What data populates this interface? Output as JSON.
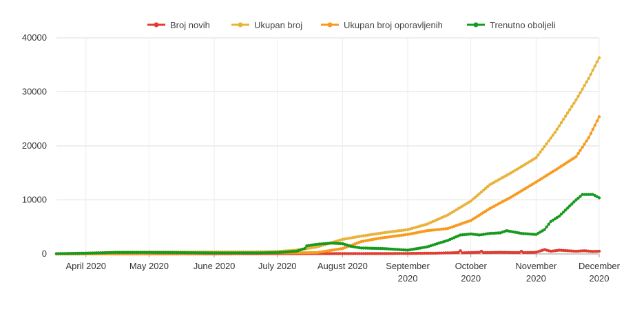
{
  "chart_data": {
    "type": "line",
    "x_ticks": [
      {
        "date": "2020-04-01",
        "line1": "April 2020",
        "line2": ""
      },
      {
        "date": "2020-05-01",
        "line1": "May 2020",
        "line2": ""
      },
      {
        "date": "2020-06-01",
        "line1": "June 2020",
        "line2": ""
      },
      {
        "date": "2020-07-01",
        "line1": "July 2020",
        "line2": ""
      },
      {
        "date": "2020-08-01",
        "line1": "August 2020",
        "line2": ""
      },
      {
        "date": "2020-09-01",
        "line1": "September",
        "line2": "2020"
      },
      {
        "date": "2020-10-01",
        "line1": "October",
        "line2": "2020"
      },
      {
        "date": "2020-11-01",
        "line1": "November",
        "line2": "2020"
      },
      {
        "date": "2020-12-01",
        "line1": "December",
        "line2": "2020"
      }
    ],
    "xlim": [
      "2020-03-18",
      "2020-12-01"
    ],
    "y_ticks": [
      0,
      10000,
      20000,
      30000,
      40000
    ],
    "ylim": [
      0,
      40000
    ],
    "grid": true,
    "legend_position": "top",
    "series": [
      {
        "name": "Broj novih",
        "color": "#e03c31",
        "points": [
          [
            "2020-03-18",
            5
          ],
          [
            "2020-04-01",
            20
          ],
          [
            "2020-05-01",
            10
          ],
          [
            "2020-06-01",
            15
          ],
          [
            "2020-07-01",
            30
          ],
          [
            "2020-07-15",
            50
          ],
          [
            "2020-08-01",
            60
          ],
          [
            "2020-08-15",
            70
          ],
          [
            "2020-09-01",
            90
          ],
          [
            "2020-09-15",
            150
          ],
          [
            "2020-09-25",
            250
          ],
          [
            "2020-09-26",
            600
          ],
          [
            "2020-09-27",
            200
          ],
          [
            "2020-10-05",
            300
          ],
          [
            "2020-10-06",
            500
          ],
          [
            "2020-10-07",
            250
          ],
          [
            "2020-10-15",
            300
          ],
          [
            "2020-10-24",
            250
          ],
          [
            "2020-10-25",
            500
          ],
          [
            "2020-10-26",
            250
          ],
          [
            "2020-11-01",
            300
          ],
          [
            "2020-11-05",
            800
          ],
          [
            "2020-11-08",
            500
          ],
          [
            "2020-11-12",
            700
          ],
          [
            "2020-11-16",
            600
          ],
          [
            "2020-11-20",
            500
          ],
          [
            "2020-11-24",
            600
          ],
          [
            "2020-11-28",
            450
          ],
          [
            "2020-12-01",
            500
          ]
        ]
      },
      {
        "name": "Ukupan broj",
        "color": "#e8b33a",
        "points": [
          [
            "2020-03-18",
            50
          ],
          [
            "2020-04-01",
            150
          ],
          [
            "2020-04-15",
            300
          ],
          [
            "2020-05-01",
            350
          ],
          [
            "2020-06-01",
            350
          ],
          [
            "2020-06-20",
            360
          ],
          [
            "2020-07-01",
            450
          ],
          [
            "2020-07-10",
            700
          ],
          [
            "2020-07-20",
            1300
          ],
          [
            "2020-08-01",
            2700
          ],
          [
            "2020-08-10",
            3300
          ],
          [
            "2020-08-20",
            3900
          ],
          [
            "2020-09-01",
            4500
          ],
          [
            "2020-09-10",
            5500
          ],
          [
            "2020-09-20",
            7200
          ],
          [
            "2020-10-01",
            9800
          ],
          [
            "2020-10-10",
            12800
          ],
          [
            "2020-10-20",
            15000
          ],
          [
            "2020-11-01",
            17800
          ],
          [
            "2020-11-10",
            22500
          ],
          [
            "2020-11-20",
            28500
          ],
          [
            "2020-11-26",
            32500
          ],
          [
            "2020-12-01",
            36300
          ]
        ]
      },
      {
        "name": "Ukupan broj oporavljenih",
        "color": "#f79a1e",
        "points": [
          [
            "2020-03-18",
            0
          ],
          [
            "2020-04-01",
            10
          ],
          [
            "2020-05-01",
            60
          ],
          [
            "2020-06-01",
            120
          ],
          [
            "2020-07-01",
            180
          ],
          [
            "2020-07-20",
            250
          ],
          [
            "2020-08-01",
            1000
          ],
          [
            "2020-08-10",
            2300
          ],
          [
            "2020-08-20",
            3000
          ],
          [
            "2020-09-01",
            3600
          ],
          [
            "2020-09-10",
            4300
          ],
          [
            "2020-09-20",
            4700
          ],
          [
            "2020-10-01",
            6200
          ],
          [
            "2020-10-10",
            8400
          ],
          [
            "2020-10-20",
            10500
          ],
          [
            "2020-11-01",
            13300
          ],
          [
            "2020-11-10",
            15500
          ],
          [
            "2020-11-20",
            18000
          ],
          [
            "2020-11-26",
            21500
          ],
          [
            "2020-12-01",
            25400
          ]
        ]
      },
      {
        "name": "Trenutno oboljeli",
        "color": "#169a1e",
        "points": [
          [
            "2020-03-18",
            50
          ],
          [
            "2020-04-01",
            140
          ],
          [
            "2020-04-15",
            280
          ],
          [
            "2020-05-01",
            280
          ],
          [
            "2020-06-01",
            200
          ],
          [
            "2020-06-20",
            200
          ],
          [
            "2020-07-01",
            250
          ],
          [
            "2020-07-10",
            500
          ],
          [
            "2020-07-14",
            1000
          ],
          [
            "2020-07-15",
            1500
          ],
          [
            "2020-07-20",
            1800
          ],
          [
            "2020-07-27",
            2000
          ],
          [
            "2020-08-01",
            1900
          ],
          [
            "2020-08-05",
            1400
          ],
          [
            "2020-08-10",
            1100
          ],
          [
            "2020-08-20",
            1000
          ],
          [
            "2020-09-01",
            700
          ],
          [
            "2020-09-10",
            1300
          ],
          [
            "2020-09-20",
            2500
          ],
          [
            "2020-09-26",
            3500
          ],
          [
            "2020-10-01",
            3700
          ],
          [
            "2020-10-05",
            3500
          ],
          [
            "2020-10-10",
            3800
          ],
          [
            "2020-10-15",
            3900
          ],
          [
            "2020-10-18",
            4300
          ],
          [
            "2020-10-25",
            3800
          ],
          [
            "2020-11-01",
            3600
          ],
          [
            "2020-11-05",
            4500
          ],
          [
            "2020-11-08",
            6000
          ],
          [
            "2020-11-12",
            7000
          ],
          [
            "2020-11-16",
            8500
          ],
          [
            "2020-11-20",
            10000
          ],
          [
            "2020-11-23",
            11000
          ],
          [
            "2020-11-28",
            11000
          ],
          [
            "2020-12-01",
            10400
          ]
        ]
      }
    ]
  }
}
